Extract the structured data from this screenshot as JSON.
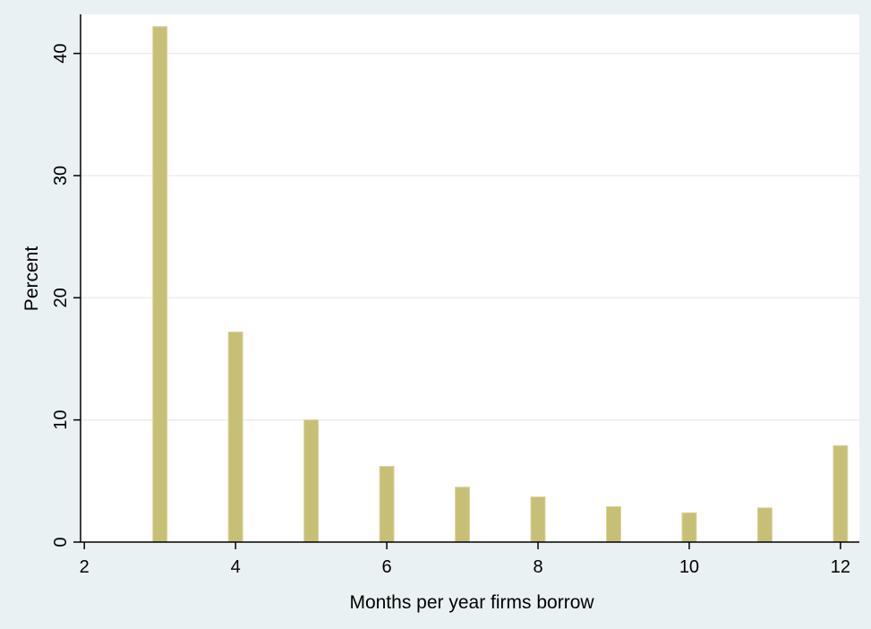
{
  "chart_data": {
    "type": "bar",
    "x": [
      3,
      4,
      5,
      6,
      7,
      8,
      9,
      10,
      11,
      12
    ],
    "values": [
      42.2,
      17.2,
      10.0,
      6.2,
      4.5,
      3.7,
      2.9,
      2.4,
      2.8,
      7.9
    ],
    "xlabel": "Months per year firms borrow",
    "ylabel": "Percent",
    "xlim": [
      1.95,
      12.25
    ],
    "ylim": [
      0,
      43.2
    ],
    "xticks": [
      "2",
      "4",
      "6",
      "8",
      "10",
      "12"
    ],
    "yticks": [
      "0",
      "10",
      "20",
      "30",
      "40"
    ],
    "grid": true,
    "colors": {
      "bar_fill": "#c8bf76",
      "bar_edge": "#ddd6a0",
      "plot_background": "#ffffff",
      "outer_background": "#eaf1f3",
      "grid": "#e9eef0"
    }
  }
}
